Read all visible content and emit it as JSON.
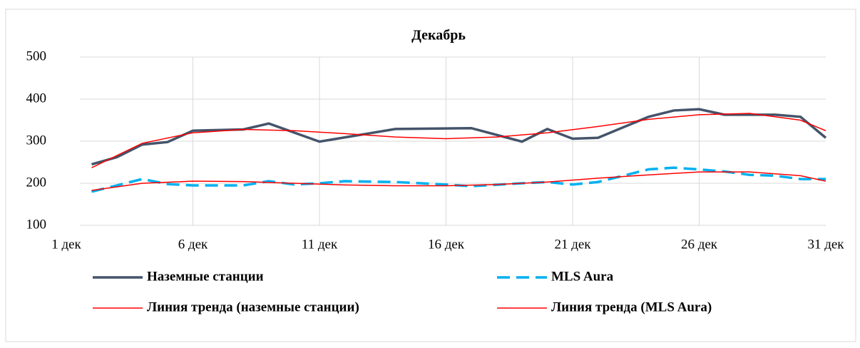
{
  "chart_data": {
    "type": "line",
    "title": "Декабрь",
    "xlim": [
      1,
      31
    ],
    "xticks": [
      {
        "value": 1,
        "label": "1 дек"
      },
      {
        "value": 6,
        "label": "6 дек"
      },
      {
        "value": 11,
        "label": "11 дек"
      },
      {
        "value": 16,
        "label": "16 дек"
      },
      {
        "value": 21,
        "label": "21 дек"
      },
      {
        "value": 26,
        "label": "26 дек"
      },
      {
        "value": 31,
        "label": "31 дек"
      }
    ],
    "ylim": [
      100,
      500
    ],
    "yticks": [
      100,
      200,
      300,
      400,
      500
    ],
    "grid": true,
    "series": [
      {
        "name": "Наземные станции",
        "color": "#44546a",
        "width": 3.5,
        "dash": false,
        "x": [
          2,
          3,
          4,
          5,
          6,
          8,
          9,
          11,
          14,
          17,
          19,
          20,
          21,
          22,
          24,
          25,
          26,
          27,
          29,
          30,
          31
        ],
        "values": [
          245,
          262,
          292,
          298,
          325,
          328,
          342,
          299,
          329,
          331,
          299,
          329,
          306,
          308,
          358,
          373,
          376,
          363,
          363,
          358,
          308
        ]
      },
      {
        "name": "MLS Aura",
        "color": "#00b0f0",
        "width": 3.5,
        "dash": true,
        "x": [
          2,
          4,
          5,
          6,
          8,
          9,
          10,
          11,
          12,
          14,
          16,
          17,
          19,
          20,
          21,
          22,
          24,
          25,
          26,
          27,
          28,
          29,
          30,
          31
        ],
        "values": [
          180,
          210,
          198,
          195,
          195,
          205,
          197,
          200,
          205,
          203,
          197,
          193,
          200,
          203,
          197,
          203,
          233,
          237,
          233,
          228,
          220,
          218,
          210,
          210
        ]
      },
      {
        "name": "Линия тренда (наземные станции)",
        "color": "#ff0000",
        "width": 1.5,
        "dash": false,
        "x": [
          2,
          4,
          6,
          8,
          10,
          12,
          14,
          16,
          18,
          20,
          22,
          24,
          26,
          28,
          30,
          31
        ],
        "values": [
          237,
          295,
          320,
          328,
          325,
          318,
          310,
          306,
          310,
          320,
          335,
          352,
          363,
          366,
          350,
          325
        ]
      },
      {
        "name": "Линия тренда (MLS Aura)",
        "color": "#ff0000",
        "width": 1.5,
        "dash": false,
        "x": [
          2,
          4,
          6,
          8,
          10,
          12,
          14,
          16,
          18,
          20,
          22,
          24,
          26,
          28,
          30,
          31
        ],
        "values": [
          183,
          200,
          205,
          204,
          200,
          196,
          194,
          194,
          197,
          203,
          212,
          220,
          227,
          227,
          218,
          205
        ]
      }
    ]
  }
}
